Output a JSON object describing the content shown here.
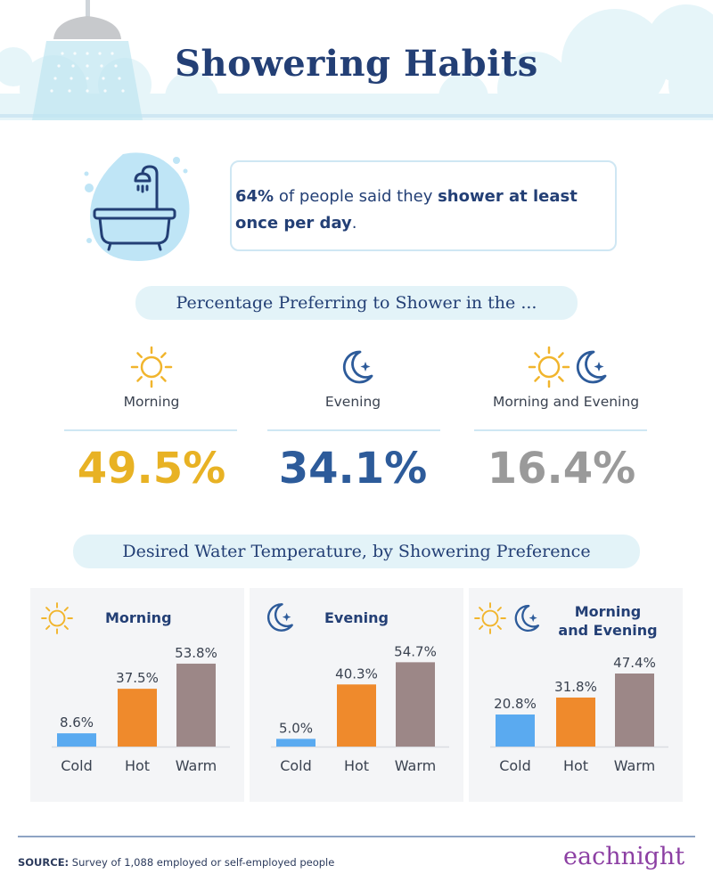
{
  "title": "Showering Habits",
  "stat": {
    "highlight_1": "64%",
    "text_1": " of people said they ",
    "highlight_2": "shower at least once per day",
    "text_2": "."
  },
  "section1_title": "Percentage Preferring to Shower in the ...",
  "preferences": [
    {
      "label": "Morning",
      "value": "49.5%",
      "color": "#e8b224",
      "icon": "sun-icon"
    },
    {
      "label": "Evening",
      "value": "34.1%",
      "color": "#2d5b9a",
      "icon": "moon-icon"
    },
    {
      "label": "Morning and Evening",
      "value": "16.4%",
      "color": "#9a9a9a",
      "icon": "sun-moon-icon"
    }
  ],
  "section2_title": "Desired Water Temperature, by Showering Preference",
  "chart_data": [
    {
      "type": "bar",
      "title": "Morning",
      "categories": [
        "Cold",
        "Hot",
        "Warm"
      ],
      "values": [
        8.6,
        37.5,
        53.8
      ],
      "labels": [
        "8.6%",
        "37.5%",
        "53.8%"
      ],
      "ylim": [
        0,
        60
      ],
      "colors": [
        "#5aaaf0",
        "#ef8a2c",
        "#9c8787"
      ]
    },
    {
      "type": "bar",
      "title": "Evening",
      "categories": [
        "Cold",
        "Hot",
        "Warm"
      ],
      "values": [
        5.0,
        40.3,
        54.7
      ],
      "labels": [
        "5.0%",
        "40.3%",
        "54.7%"
      ],
      "ylim": [
        0,
        60
      ],
      "colors": [
        "#5aaaf0",
        "#ef8a2c",
        "#9c8787"
      ]
    },
    {
      "type": "bar",
      "title": "Morning and Evening",
      "title_lines": [
        "Morning",
        "and Evening"
      ],
      "categories": [
        "Cold",
        "Hot",
        "Warm"
      ],
      "values": [
        20.8,
        31.8,
        47.4
      ],
      "labels": [
        "20.8%",
        "31.8%",
        "47.4%"
      ],
      "ylim": [
        0,
        60
      ],
      "colors": [
        "#5aaaf0",
        "#ef8a2c",
        "#9c8787"
      ]
    }
  ],
  "source": {
    "label": "SOURCE:",
    "text": " Survey of 1,088 employed or self-employed people"
  },
  "logo": "eachnight",
  "colors": {
    "navy": "#233f75",
    "light_blue": "#e3f3f8",
    "brand": "#8c3fa3"
  }
}
